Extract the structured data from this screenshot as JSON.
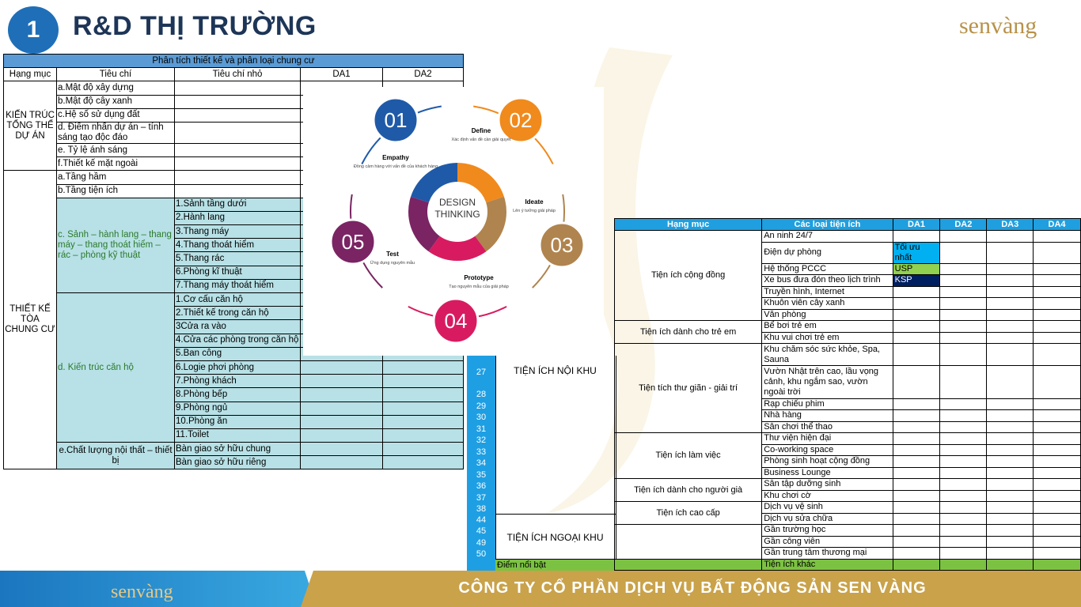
{
  "header": {
    "slide_number": "1",
    "title": "R&D THỊ TRƯỜNG",
    "logo_text": "senvàng"
  },
  "left_table": {
    "title": "Phân tích thiết kế và phân loại chung cư",
    "headers": [
      "Hạng mục",
      "Tiêu chí",
      "Tiêu chí nhỏ",
      "DA1",
      "DA2"
    ],
    "cat1": "KIẾN TRÚC TỔNG THỂ DỰ ÁN",
    "cat1_items": [
      "a.Mật độ xây dựng",
      "b.Mật độ cây xanh",
      "c.Hệ số sử dụng đất",
      "d. Điểm nhấn dự án – tính sáng tạo độc đáo",
      "e. Tỷ lệ ánh sáng",
      "f.Thiết kế mặt ngoài"
    ],
    "cat2": "THIẾT KẾ TÒA CHUNG CƯ",
    "cat2_items": [
      "a.Tầng hầm",
      "b.Tầng tiện ích"
    ],
    "c_label": "c. Sảnh – hành lang – thang máy – thang thoát hiểm – rác – phòng kỹ thuật",
    "c_sub": [
      "1.Sảnh tầng dưới",
      "2.Hành lang",
      "3.Thang máy",
      "4.Thang thoát hiểm",
      "5.Thang rác",
      "6.Phòng kĩ thuật",
      "7.Thang máy thoát hiểm"
    ],
    "d_label": "d. Kiến trúc căn hộ",
    "d_sub": [
      "1.Cơ cấu căn hộ",
      "2.Thiết kế trong căn hộ",
      "3Cửa ra vào",
      "4.Cửa các phòng trong căn hộ",
      "5.Ban công",
      "6.Logie phơi phòng",
      "7.Phòng khách",
      "8.Phòng bếp",
      "9.Phòng ngủ",
      "10.Phòng ăn",
      "11.Toilet"
    ],
    "e_label": "e.Chất lượng nội thất – thiết bị",
    "e_sub": [
      "Bàn giao sở hữu chung",
      "Bàn giao sở hữu riêng"
    ]
  },
  "design_thinking": {
    "center": [
      "DESIGN",
      "THINKING"
    ],
    "steps": [
      {
        "num": "01",
        "title": "Empathy",
        "desc": "Đồng cảm hàng với vấn đề của khách hàng",
        "color": "#1f5aa8"
      },
      {
        "num": "02",
        "title": "Define",
        "desc": "Xác định vấn đề cần giải quyết",
        "color": "#f08a1c"
      },
      {
        "num": "03",
        "title": "Ideate",
        "desc": "Lên ý tưởng giải pháp",
        "color": "#b0844e"
      },
      {
        "num": "04",
        "title": "Prototype",
        "desc": "Tạo nguyên mẫu của giải pháp",
        "color": "#d81b60"
      },
      {
        "num": "05",
        "title": "Test",
        "desc": "Ứng dụng nguyên mẫu",
        "color": "#7a2463"
      }
    ]
  },
  "right_table": {
    "headers": [
      "Hạng mục",
      "Các loại tiện ích",
      "DA1",
      "DA2",
      "DA3",
      "DA4"
    ],
    "groups": [
      {
        "name": "Tiện ích cộng đồng",
        "items": [
          "An ninh 24/7",
          "Điện dự phòng",
          "Hệ thống PCCC",
          "Xe bus đưa đón theo lịch trình",
          "Truyền hình, Internet",
          "Khuôn viên cây xanh",
          "Văn phòng"
        ]
      },
      {
        "name": "Tiện ích dành cho trẻ em",
        "items": [
          "Bể bơi trẻ em",
          "Khu vui chơi trẻ em"
        ]
      },
      {
        "name": "Tiện tích thư giãn - giải trí",
        "items": [
          "Khu chăm sóc sức khỏe, Spa, Sauna",
          "Vườn Nhật trên cao, lầu vọng cảnh, khu ngắm sao, vườn ngoài trời",
          "Rạp chiếu phim",
          "Nhà hàng",
          "Sân chơi thể thao"
        ]
      },
      {
        "name": "Tiện ích làm việc",
        "items": [
          "Thư viện hiện đại",
          "Co-working space",
          "Phòng sinh hoạt cộng đồng",
          "Business Lounge"
        ]
      },
      {
        "name": "Tiện ích dành cho người già",
        "items": [
          "Sân tập dưỡng sinh",
          "Khu chơi cờ"
        ]
      },
      {
        "name": "Tiện ích cao cấp",
        "items": [
          "Dịch vụ vệ sinh",
          "Dịch vụ sửa chữa"
        ]
      },
      {
        "name": "",
        "items": [
          "Gần trường học",
          "Gần công viên",
          "Gần trung tâm thương mại",
          "Tiện ích khác"
        ]
      }
    ],
    "tags": {
      "top": "Tối ưu nhất",
      "usp": "USP",
      "ksp": "KSP"
    },
    "row_numbers": [
      "27",
      "28",
      "29",
      "30",
      "31",
      "32",
      "33",
      "34",
      "35",
      "36",
      "37",
      "38",
      "44",
      "45",
      "49",
      "50"
    ],
    "noi_khu": "TIỆN ÍCH NỘI KHU",
    "ngoai_khu": "TIỆN ÍCH NGOẠI KHU",
    "highlight": "Điểm nổi bật"
  },
  "footer": {
    "logo_text": "senvàng",
    "company": "CÔNG TY CỔ PHẦN DỊCH VỤ BẤT ĐỘNG SẢN SEN VÀNG"
  }
}
